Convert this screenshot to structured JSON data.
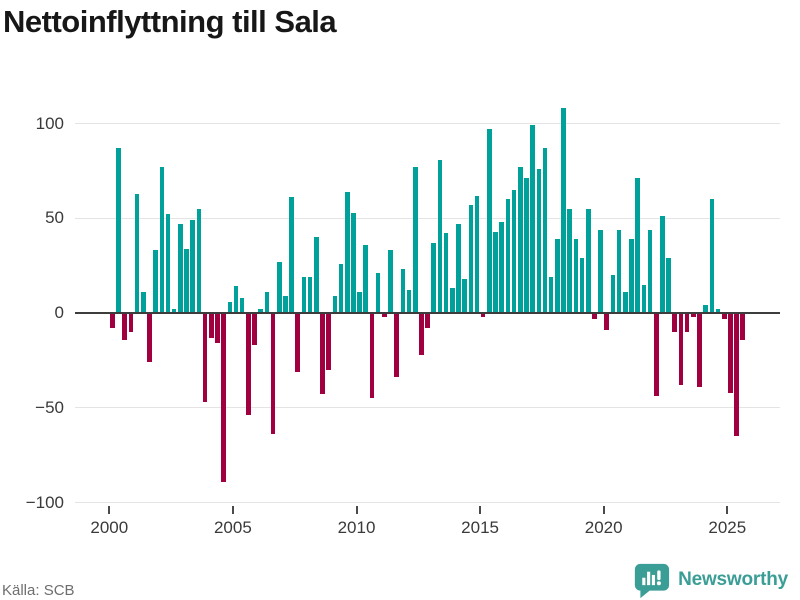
{
  "title": "Nettoinflyttning till Sala",
  "source": "Källa: SCB",
  "branding": {
    "logo_text": "Newsworthy",
    "logo_icon": "bar-chart-speech-bubble-icon"
  },
  "colors": {
    "positive": "#00a19a",
    "negative": "#a00040",
    "brand": "#3a9e96",
    "grid": "#e4e4e4",
    "zero_axis": "#3d3d3d",
    "tick_label": "#3a3a3a",
    "source_text": "#6e6e6e",
    "title_text": "#171717"
  },
  "chart_data": {
    "type": "bar",
    "title": "Nettoinflyttning till Sala",
    "frequency": "quarterly",
    "x_start": "2000 Q1",
    "x_end": "2025 Q3",
    "x_tick_labels": [
      "2000",
      "2005",
      "2010",
      "2015",
      "2020",
      "2025"
    ],
    "y_tick_values": [
      100,
      50,
      0,
      -50,
      -100
    ],
    "y_tick_labels": [
      "100",
      "50",
      "0",
      "−50",
      "−100"
    ],
    "ylim": [
      -110,
      120
    ],
    "grid": "horizontal",
    "legend": "none",
    "ylabel": "",
    "xlabel": "",
    "values": [
      -8,
      87,
      -14,
      -10,
      63,
      11,
      -26,
      33,
      77,
      52,
      2,
      47,
      34,
      49,
      55,
      -47,
      -13,
      -16,
      -89,
      6,
      14,
      8,
      -54,
      -17,
      2,
      11,
      -64,
      27,
      9,
      61,
      -31,
      19,
      19,
      40,
      -43,
      -30,
      9,
      26,
      64,
      53,
      11,
      36,
      -45,
      21,
      -2,
      33,
      -34,
      23,
      12,
      77,
      -22,
      -8,
      37,
      81,
      42,
      13,
      47,
      18,
      57,
      62,
      -2,
      97,
      43,
      48,
      60,
      65,
      77,
      71,
      99,
      76,
      87,
      19,
      39,
      108,
      55,
      39,
      29,
      55,
      -3,
      44,
      -9,
      20,
      44,
      11,
      39,
      71,
      15,
      44,
      -44,
      51,
      29,
      -10,
      -38,
      -10,
      -2,
      -39,
      4,
      60,
      2,
      -3,
      -42,
      -65,
      -14
    ]
  }
}
